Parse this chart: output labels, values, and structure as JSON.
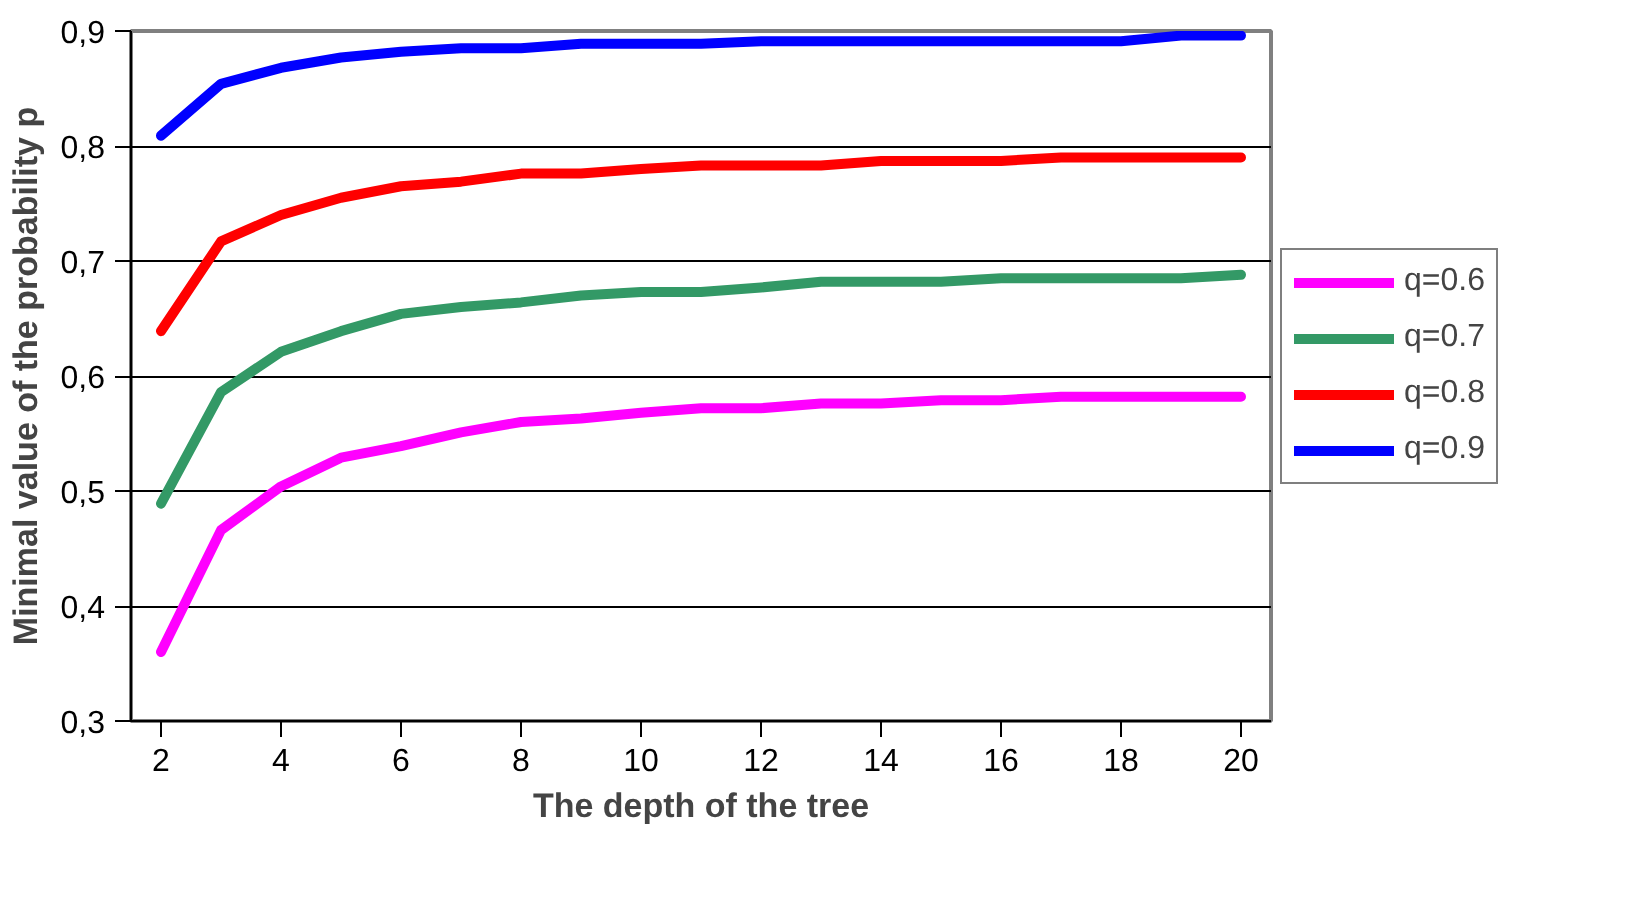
{
  "chart_data": {
    "type": "line",
    "xlabel": "The depth of the tree",
    "ylabel": "Minimal value of the probability p",
    "x": [
      2,
      3,
      4,
      5,
      6,
      7,
      8,
      9,
      10,
      11,
      12,
      13,
      14,
      15,
      16,
      17,
      18,
      19,
      20
    ],
    "xlim": [
      1.5,
      20.5
    ],
    "xticks": [
      2,
      4,
      6,
      8,
      10,
      12,
      14,
      16,
      18,
      20
    ],
    "ylim": [
      0.3,
      0.9
    ],
    "yticks": [
      {
        "value": 0.3,
        "label": "0,3"
      },
      {
        "value": 0.4,
        "label": "0,4"
      },
      {
        "value": 0.5,
        "label": "0,5"
      },
      {
        "value": 0.6,
        "label": "0,6"
      },
      {
        "value": 0.7,
        "label": "0,7"
      },
      {
        "value": 0.8,
        "label": "0,8"
      },
      {
        "value": 0.9,
        "label": "0,9"
      }
    ],
    "grid": "y",
    "legend": "right",
    "marker": "none",
    "line_style": "solid",
    "series": [
      {
        "name": "q=0.6",
        "color": "#ff00ff",
        "values": [
          0.36,
          0.466,
          0.504,
          0.529,
          0.539,
          0.551,
          0.56,
          0.563,
          0.568,
          0.572,
          0.572,
          0.576,
          0.576,
          0.579,
          0.579,
          0.582,
          0.582,
          0.582,
          0.582
        ]
      },
      {
        "name": "q=0.7",
        "color": "#339966",
        "values": [
          0.489,
          0.586,
          0.621,
          0.639,
          0.654,
          0.66,
          0.664,
          0.67,
          0.673,
          0.673,
          0.677,
          0.682,
          0.682,
          0.682,
          0.685,
          0.685,
          0.685,
          0.685,
          0.688
        ]
      },
      {
        "name": "q=0.8",
        "color": "#ff0000",
        "values": [
          0.639,
          0.717,
          0.74,
          0.755,
          0.765,
          0.769,
          0.776,
          0.776,
          0.78,
          0.783,
          0.783,
          0.783,
          0.787,
          0.787,
          0.787,
          0.79,
          0.79,
          0.79,
          0.79
        ]
      },
      {
        "name": "q=0.9",
        "color": "#0000ff",
        "values": [
          0.809,
          0.854,
          0.868,
          0.877,
          0.882,
          0.885,
          0.885,
          0.889,
          0.889,
          0.889,
          0.891,
          0.891,
          0.891,
          0.891,
          0.891,
          0.891,
          0.891,
          0.896,
          0.896
        ]
      }
    ]
  }
}
